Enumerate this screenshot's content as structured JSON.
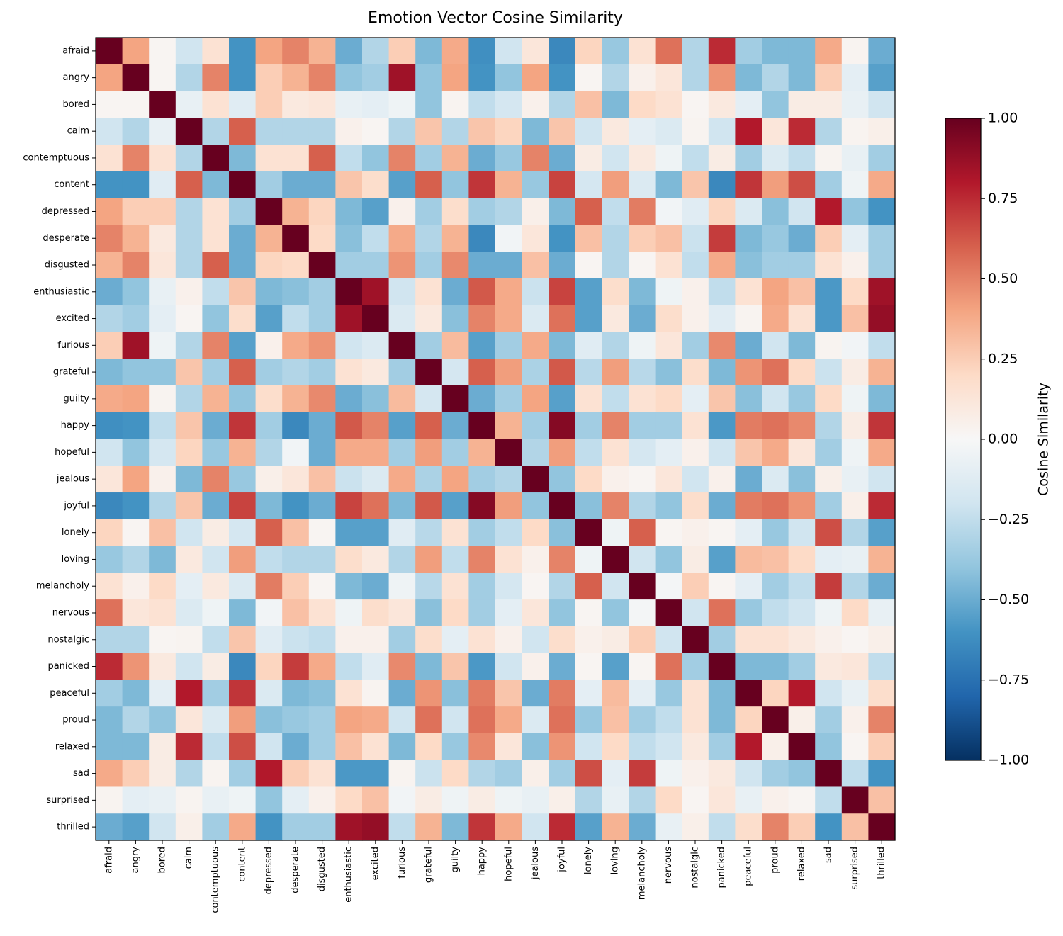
{
  "chart_data": {
    "type": "heatmap",
    "title": "Emotion Vector Cosine Similarity",
    "categories": [
      "afraid",
      "angry",
      "bored",
      "calm",
      "contemptuous",
      "content",
      "depressed",
      "desperate",
      "disgusted",
      "enthusiastic",
      "excited",
      "furious",
      "grateful",
      "guilty",
      "happy",
      "hopeful",
      "jealous",
      "joyful",
      "lonely",
      "loving",
      "melancholy",
      "nervous",
      "nostalgic",
      "panicked",
      "peaceful",
      "proud",
      "relaxed",
      "sad",
      "surprised",
      "thrilled"
    ],
    "colormap": "RdBu_r",
    "colorbar": {
      "label": "Cosine Similarity",
      "lim": [
        -1,
        1
      ],
      "ticks": [
        {
          "value": -1,
          "label": "−1.00"
        },
        {
          "value": -0.75,
          "label": "−0.75"
        },
        {
          "value": -0.5,
          "label": "−0.50"
        },
        {
          "value": -0.25,
          "label": "−0.25"
        },
        {
          "value": 0,
          "label": "0.00"
        },
        {
          "value": 0.25,
          "label": "0.25"
        },
        {
          "value": 0.5,
          "label": "0.50"
        },
        {
          "value": 0.75,
          "label": "0.75"
        },
        {
          "value": 1,
          "label": "1.00"
        }
      ]
    },
    "values": [
      [
        1,
        0.4,
        0.02,
        -0.2,
        0.15,
        -0.6,
        0.4,
        0.5,
        0.35,
        -0.5,
        -0.3,
        0.25,
        -0.45,
        0.38,
        -0.62,
        -0.2,
        0.12,
        -0.65,
        0.22,
        -0.38,
        0.15,
        0.55,
        -0.3,
        0.75,
        -0.35,
        -0.45,
        -0.45,
        0.38,
        0.03,
        -0.5
      ],
      [
        0.4,
        1,
        0.02,
        -0.3,
        0.5,
        -0.6,
        0.25,
        0.35,
        0.5,
        -0.4,
        -0.35,
        0.85,
        -0.4,
        0.4,
        -0.6,
        -0.4,
        0.4,
        -0.6,
        0.02,
        -0.3,
        0.05,
        0.12,
        -0.3,
        0.45,
        -0.45,
        -0.3,
        -0.45,
        0.25,
        -0.1,
        -0.55
      ],
      [
        0.02,
        0.02,
        1,
        -0.08,
        0.15,
        -0.12,
        0.25,
        0.1,
        0.12,
        -0.08,
        -0.1,
        -0.05,
        -0.4,
        0.03,
        -0.25,
        -0.18,
        0.05,
        -0.3,
        0.3,
        -0.45,
        0.2,
        0.15,
        0.02,
        0.1,
        -0.1,
        -0.4,
        0.08,
        0.08,
        -0.08,
        -0.2
      ],
      [
        -0.2,
        -0.3,
        -0.08,
        1,
        -0.3,
        0.6,
        -0.3,
        -0.3,
        -0.3,
        0.05,
        0.02,
        -0.3,
        0.28,
        -0.3,
        0.28,
        0.22,
        -0.45,
        0.28,
        -0.2,
        0.1,
        -0.1,
        -0.15,
        0.03,
        -0.2,
        0.8,
        0.12,
        0.75,
        -0.3,
        0.03,
        0.06
      ],
      [
        0.15,
        0.5,
        0.15,
        -0.3,
        1,
        -0.45,
        0.15,
        0.15,
        0.6,
        -0.25,
        -0.4,
        0.5,
        -0.35,
        0.35,
        -0.5,
        -0.38,
        0.5,
        -0.5,
        0.08,
        -0.2,
        0.1,
        -0.05,
        -0.25,
        0.08,
        -0.35,
        -0.15,
        -0.25,
        0.03,
        -0.08,
        -0.35
      ],
      [
        -0.6,
        -0.6,
        -0.12,
        0.6,
        -0.45,
        1,
        -0.35,
        -0.5,
        -0.5,
        0.28,
        0.18,
        -0.55,
        0.6,
        -0.4,
        0.72,
        0.35,
        -0.38,
        0.68,
        -0.18,
        0.42,
        -0.15,
        -0.45,
        0.28,
        -0.65,
        0.72,
        0.42,
        0.65,
        -0.35,
        -0.05,
        0.38
      ],
      [
        0.4,
        0.25,
        0.25,
        -0.3,
        0.15,
        -0.35,
        1,
        0.35,
        0.22,
        -0.45,
        -0.55,
        0.05,
        -0.35,
        0.18,
        -0.35,
        -0.3,
        0.06,
        -0.45,
        0.6,
        -0.25,
        0.52,
        -0.03,
        -0.12,
        0.22,
        -0.15,
        -0.42,
        -0.2,
        0.8,
        -0.4,
        -0.6
      ],
      [
        0.5,
        0.35,
        0.1,
        -0.3,
        0.15,
        -0.5,
        0.35,
        1,
        0.2,
        -0.42,
        -0.25,
        0.38,
        -0.3,
        0.35,
        -0.65,
        -0.03,
        0.12,
        -0.6,
        0.3,
        -0.3,
        0.25,
        0.3,
        -0.22,
        0.7,
        -0.45,
        -0.38,
        -0.5,
        0.25,
        -0.1,
        -0.35
      ],
      [
        0.35,
        0.5,
        0.12,
        -0.3,
        0.6,
        -0.5,
        0.22,
        0.2,
        1,
        -0.35,
        -0.35,
        0.45,
        -0.35,
        0.48,
        -0.5,
        -0.5,
        0.3,
        -0.5,
        0.02,
        -0.3,
        0.02,
        0.15,
        -0.25,
        0.38,
        -0.42,
        -0.35,
        -0.35,
        0.15,
        0.05,
        -0.35
      ],
      [
        -0.5,
        -0.4,
        -0.08,
        0.05,
        -0.25,
        0.28,
        -0.45,
        -0.42,
        -0.35,
        1,
        0.85,
        -0.2,
        0.15,
        -0.5,
        0.62,
        0.38,
        -0.22,
        0.68,
        -0.55,
        0.18,
        -0.45,
        -0.05,
        0.05,
        -0.25,
        0.15,
        0.4,
        0.3,
        -0.58,
        0.2,
        0.85
      ],
      [
        -0.3,
        -0.35,
        -0.1,
        0.02,
        -0.4,
        0.18,
        -0.55,
        -0.25,
        -0.35,
        0.85,
        1,
        -0.15,
        0.1,
        -0.42,
        0.5,
        0.38,
        -0.15,
        0.55,
        -0.55,
        0.1,
        -0.5,
        0.18,
        0.05,
        -0.12,
        0.03,
        0.38,
        0.15,
        -0.58,
        0.3,
        0.88
      ],
      [
        0.25,
        0.85,
        -0.05,
        -0.3,
        0.5,
        -0.55,
        0.05,
        0.38,
        0.45,
        -0.2,
        -0.15,
        1,
        -0.35,
        0.32,
        -0.55,
        -0.35,
        0.38,
        -0.45,
        -0.12,
        -0.3,
        -0.05,
        0.12,
        -0.35,
        0.48,
        -0.5,
        -0.2,
        -0.45,
        0.03,
        -0.03,
        -0.25
      ],
      [
        -0.45,
        -0.4,
        -0.4,
        0.28,
        -0.35,
        0.6,
        -0.35,
        -0.3,
        -0.35,
        0.15,
        0.1,
        -0.35,
        1,
        -0.18,
        0.6,
        0.42,
        -0.32,
        0.62,
        -0.28,
        0.42,
        -0.28,
        -0.42,
        0.18,
        -0.45,
        0.45,
        0.55,
        0.2,
        -0.22,
        0.08,
        0.35
      ],
      [
        0.38,
        0.4,
        0.03,
        -0.3,
        0.35,
        -0.4,
        0.18,
        0.35,
        0.48,
        -0.5,
        -0.42,
        0.32,
        -0.18,
        1,
        -0.5,
        -0.35,
        0.4,
        -0.55,
        0.15,
        -0.25,
        0.15,
        0.2,
        -0.1,
        0.28,
        -0.42,
        -0.2,
        -0.38,
        0.2,
        -0.05,
        -0.45
      ],
      [
        -0.62,
        -0.6,
        -0.25,
        0.28,
        -0.5,
        0.72,
        -0.35,
        -0.65,
        -0.5,
        0.62,
        0.5,
        -0.55,
        0.6,
        -0.5,
        1,
        0.35,
        -0.35,
        0.92,
        -0.35,
        0.5,
        -0.35,
        -0.35,
        0.15,
        -0.58,
        0.52,
        0.55,
        0.48,
        -0.3,
        0.08,
        0.72
      ],
      [
        -0.2,
        -0.4,
        -0.18,
        0.22,
        -0.38,
        0.35,
        -0.3,
        -0.03,
        -0.5,
        0.38,
        0.38,
        -0.35,
        0.42,
        -0.35,
        0.35,
        1,
        -0.3,
        0.42,
        -0.25,
        0.15,
        -0.18,
        -0.1,
        0.05,
        -0.2,
        0.28,
        0.38,
        0.12,
        -0.35,
        -0.05,
        0.38
      ],
      [
        0.12,
        0.4,
        0.05,
        -0.45,
        0.5,
        -0.38,
        0.06,
        0.12,
        0.3,
        -0.22,
        -0.15,
        0.38,
        -0.32,
        0.4,
        -0.35,
        -0.3,
        1,
        -0.4,
        0.2,
        0.05,
        0.02,
        0.12,
        -0.2,
        0.05,
        -0.5,
        -0.15,
        -0.42,
        0.06,
        -0.08,
        -0.2
      ],
      [
        -0.65,
        -0.6,
        -0.3,
        0.28,
        -0.5,
        0.68,
        -0.45,
        -0.6,
        -0.5,
        0.68,
        0.55,
        -0.45,
        0.62,
        -0.55,
        0.92,
        0.42,
        -0.4,
        1,
        -0.42,
        0.5,
        -0.3,
        -0.4,
        0.18,
        -0.5,
        0.52,
        0.55,
        0.45,
        -0.35,
        0.06,
        0.75
      ],
      [
        0.22,
        0.02,
        0.3,
        -0.2,
        0.08,
        -0.18,
        0.6,
        0.3,
        0.02,
        -0.55,
        -0.55,
        -0.12,
        -0.28,
        0.15,
        -0.35,
        -0.25,
        0.2,
        -0.42,
        1,
        -0.05,
        0.6,
        0.02,
        0.05,
        0.02,
        -0.1,
        -0.38,
        -0.2,
        0.65,
        -0.3,
        -0.55
      ],
      [
        -0.38,
        -0.3,
        -0.45,
        0.1,
        -0.2,
        0.42,
        -0.25,
        -0.3,
        -0.3,
        0.18,
        0.1,
        -0.3,
        0.42,
        -0.25,
        0.5,
        0.15,
        0.05,
        0.5,
        -0.05,
        1,
        -0.2,
        -0.4,
        0.08,
        -0.55,
        0.32,
        0.3,
        0.2,
        -0.1,
        -0.08,
        0.35
      ],
      [
        0.15,
        0.05,
        0.2,
        -0.1,
        0.1,
        -0.15,
        0.52,
        0.25,
        0.02,
        -0.45,
        -0.5,
        -0.05,
        -0.28,
        0.15,
        -0.35,
        -0.18,
        0.02,
        -0.3,
        0.6,
        -0.2,
        1,
        -0.02,
        0.25,
        0.02,
        -0.1,
        -0.35,
        -0.25,
        0.7,
        -0.3,
        -0.5
      ],
      [
        0.55,
        0.12,
        0.15,
        -0.15,
        -0.05,
        -0.45,
        -0.03,
        0.3,
        0.15,
        -0.05,
        0.18,
        0.12,
        -0.42,
        0.2,
        -0.35,
        -0.1,
        0.12,
        -0.4,
        0.02,
        -0.4,
        -0.02,
        1,
        -0.2,
        0.55,
        -0.38,
        -0.25,
        -0.2,
        -0.05,
        0.2,
        -0.08
      ],
      [
        -0.3,
        -0.3,
        0.02,
        0.03,
        -0.25,
        0.28,
        -0.12,
        -0.22,
        -0.25,
        0.05,
        0.05,
        -0.35,
        0.18,
        -0.1,
        0.15,
        0.05,
        -0.2,
        0.18,
        0.05,
        0.08,
        0.25,
        -0.2,
        1,
        -0.35,
        0.15,
        0.15,
        0.1,
        0.05,
        0.02,
        0.06
      ],
      [
        0.75,
        0.45,
        0.1,
        -0.2,
        0.08,
        -0.65,
        0.22,
        0.7,
        0.38,
        -0.25,
        -0.12,
        0.48,
        -0.45,
        0.28,
        -0.58,
        -0.2,
        0.05,
        -0.5,
        0.02,
        -0.55,
        0.02,
        0.55,
        -0.35,
        1,
        -0.45,
        -0.45,
        -0.35,
        0.1,
        0.12,
        -0.25
      ],
      [
        -0.35,
        -0.45,
        -0.1,
        0.8,
        -0.35,
        0.72,
        -0.15,
        -0.45,
        -0.42,
        0.15,
        0.03,
        -0.5,
        0.45,
        -0.42,
        0.52,
        0.28,
        -0.5,
        0.52,
        -0.1,
        0.32,
        -0.1,
        -0.38,
        0.15,
        -0.45,
        1,
        0.22,
        0.8,
        -0.2,
        -0.08,
        0.18
      ],
      [
        -0.45,
        -0.3,
        -0.4,
        0.12,
        -0.15,
        0.42,
        -0.42,
        -0.38,
        -0.35,
        0.4,
        0.38,
        -0.2,
        0.55,
        -0.2,
        0.55,
        0.38,
        -0.15,
        0.55,
        -0.38,
        0.3,
        -0.35,
        -0.25,
        0.15,
        -0.45,
        0.22,
        1,
        0.06,
        -0.35,
        0.05,
        0.5
      ],
      [
        -0.45,
        -0.45,
        0.08,
        0.75,
        -0.25,
        0.65,
        -0.2,
        -0.5,
        -0.35,
        0.3,
        0.15,
        -0.45,
        0.2,
        -0.38,
        0.48,
        0.12,
        -0.42,
        0.45,
        -0.2,
        0.2,
        -0.25,
        -0.2,
        0.1,
        -0.35,
        0.8,
        0.06,
        1,
        -0.4,
        0.02,
        0.25
      ],
      [
        0.38,
        0.25,
        0.08,
        -0.3,
        0.03,
        -0.35,
        0.8,
        0.25,
        0.15,
        -0.58,
        -0.58,
        0.03,
        -0.22,
        0.2,
        -0.3,
        -0.35,
        0.06,
        -0.35,
        0.65,
        -0.1,
        0.7,
        -0.05,
        0.05,
        0.1,
        -0.2,
        -0.35,
        -0.4,
        1,
        -0.25,
        -0.6
      ],
      [
        0.03,
        -0.1,
        -0.08,
        0.03,
        -0.08,
        -0.05,
        -0.4,
        -0.1,
        0.05,
        0.2,
        0.3,
        -0.03,
        0.08,
        -0.05,
        0.08,
        -0.05,
        -0.08,
        0.06,
        -0.3,
        -0.08,
        -0.3,
        0.2,
        0.02,
        0.12,
        -0.08,
        0.05,
        0.02,
        -0.25,
        1,
        0.3
      ],
      [
        -0.5,
        -0.55,
        -0.2,
        0.06,
        -0.35,
        0.38,
        -0.6,
        -0.35,
        -0.35,
        0.85,
        0.88,
        -0.25,
        0.35,
        -0.45,
        0.72,
        0.38,
        -0.2,
        0.75,
        -0.55,
        0.35,
        -0.5,
        -0.08,
        0.06,
        -0.25,
        0.18,
        0.5,
        0.25,
        -0.6,
        0.3,
        1
      ]
    ]
  }
}
